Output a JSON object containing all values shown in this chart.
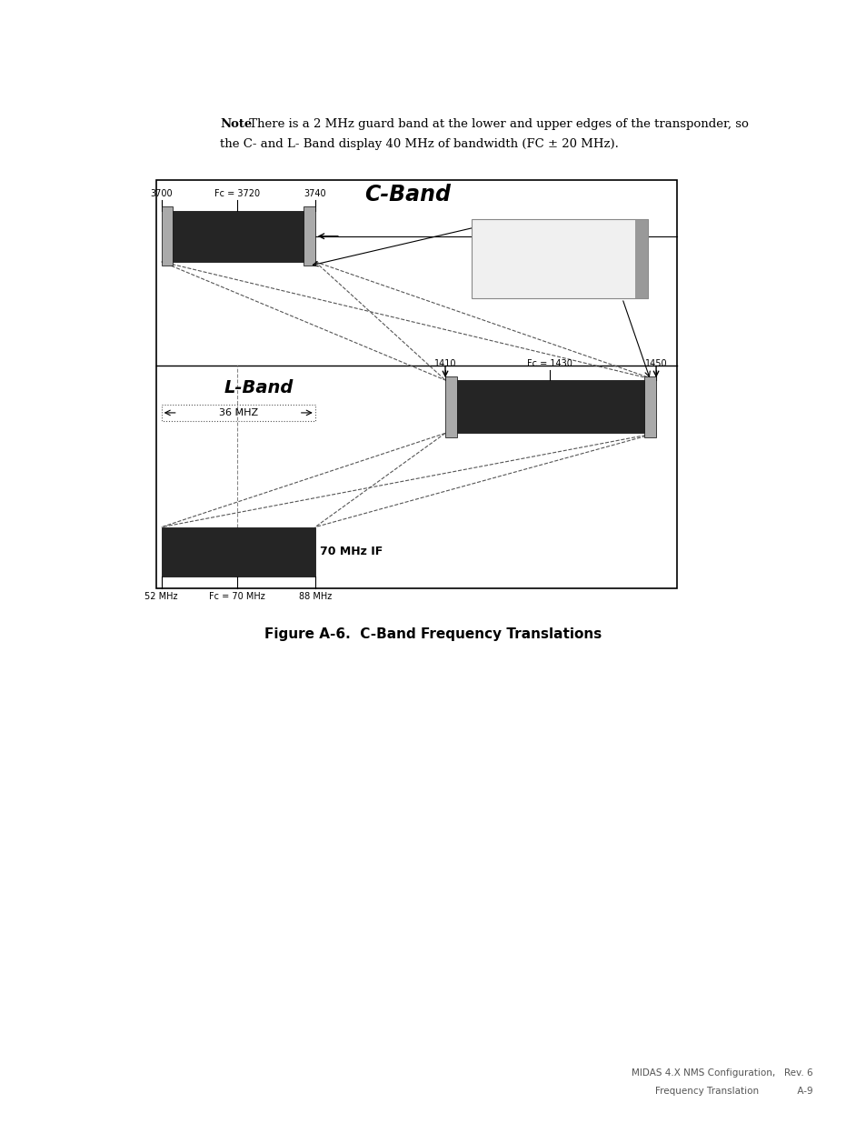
{
  "note_bold": "Note",
  "note_rest": ": There is a 2 MHz guard band at the lower and upper edges of the transponder, so\nthe C- and L- Band display 40 MHz of bandwidth (FC ± 20 MHz).",
  "figure_caption": "Figure A-6.  C-Band Frequency Translations",
  "footer_line1": "MIDAS 4.X NMS Configuration,   Rev. 6",
  "footer_line2": "Frequency Translation             A-9",
  "cband_label": "C-Band",
  "lband_label": "L-Band",
  "if_label": "70 MHz IF",
  "arrow_label_36mhz": "36 MHZ",
  "bar_dark": "#252525",
  "guard_gray": "#aaaaaa",
  "guard_box_bg": "#f0f0f0",
  "guard_box_border": "#999999"
}
